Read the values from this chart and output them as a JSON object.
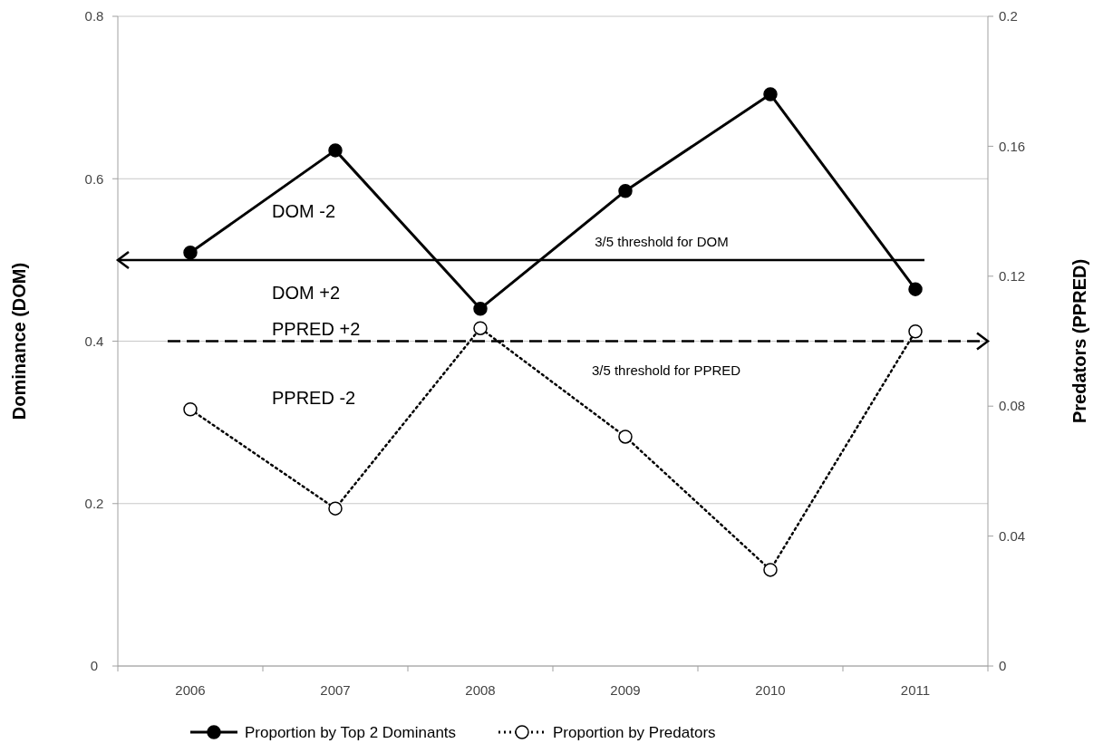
{
  "chart_data": {
    "type": "line",
    "categories": [
      "2006",
      "2007",
      "2008",
      "2009",
      "2010",
      "2011"
    ],
    "ylabel": "Dominance (DOM)",
    "y2label": "Predators (PPRED)",
    "ylim": [
      0,
      0.8
    ],
    "yticks": [
      0,
      0.2,
      0.4,
      0.6,
      0.8
    ],
    "y2lim": [
      0,
      0.2
    ],
    "y2ticks": [
      0,
      0.04,
      0.08,
      0.12,
      0.16,
      0.2
    ],
    "grid": "y",
    "legend": "bottom",
    "marker": "circle",
    "series": [
      {
        "name": "Proportion by Top 2 Dominants",
        "color": "#000000",
        "line_style": "solid",
        "values": [
          0.509,
          0.635,
          0.44,
          0.585,
          0.704,
          0.464
        ]
      },
      {
        "name": "Proportion by Predators",
        "color": "#000000",
        "line_style": "dotted",
        "axis": "y2",
        "values": [
          0.079,
          0.0485,
          0.104,
          0.0706,
          0.0296,
          0.103
        ]
      }
    ],
    "ref_lines": [
      {
        "axis": "y",
        "value": 0.5,
        "label": "3/5 threshold for DOM",
        "color": "#000000",
        "line_style": "solid"
      },
      {
        "axis": "y2",
        "value": 0.1,
        "label": "3/5 threshold for PPRED",
        "color": "#000000",
        "line_style": "dashed"
      }
    ],
    "annotations": [
      "DOM -2",
      "DOM +2",
      "PPRED +2",
      "PPRED -2"
    ]
  }
}
